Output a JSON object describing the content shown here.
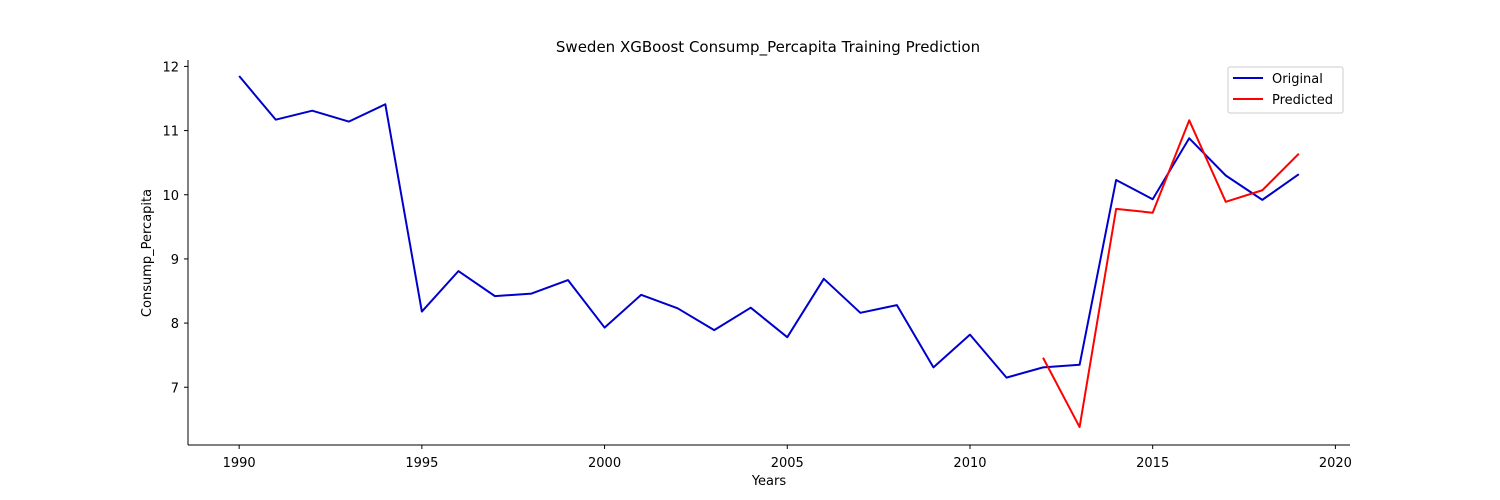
{
  "chart_data": {
    "type": "line",
    "title": "Sweden XGBoost Consump_Percapita Training Prediction",
    "xlabel": "Years",
    "ylabel": "Consump_Percapita",
    "xlim": [
      1988.6,
      2020.4
    ],
    "ylim": [
      6.1,
      12.1
    ],
    "xticks": [
      1990,
      1995,
      2000,
      2005,
      2010,
      2015,
      2020
    ],
    "yticks": [
      7,
      8,
      9,
      10,
      11,
      12
    ],
    "grid": false,
    "legend_position": "top-right",
    "series": [
      {
        "name": "Original",
        "color": "#0000cd",
        "x": [
          1990,
          1991,
          1992,
          1993,
          1994,
          1995,
          1996,
          1997,
          1998,
          1999,
          2000,
          2001,
          2002,
          2003,
          2004,
          2005,
          2006,
          2007,
          2008,
          2009,
          2010,
          2011,
          2012,
          2013,
          2014,
          2015,
          2016,
          2017,
          2018,
          2019
        ],
        "y": [
          11.85,
          11.17,
          11.31,
          11.14,
          11.41,
          8.18,
          8.81,
          8.42,
          8.46,
          8.67,
          7.93,
          8.44,
          8.23,
          7.89,
          8.24,
          7.78,
          8.69,
          8.16,
          8.28,
          7.31,
          7.82,
          7.15,
          7.31,
          7.35,
          10.23,
          9.93,
          10.88,
          10.3,
          9.92,
          10.32
        ]
      },
      {
        "name": "Predicted",
        "color": "#ff0000",
        "x": [
          2012,
          2013,
          2014,
          2015,
          2016,
          2017,
          2018,
          2019
        ],
        "y": [
          7.46,
          6.38,
          9.78,
          9.72,
          11.16,
          9.89,
          10.07,
          10.64
        ]
      }
    ]
  }
}
